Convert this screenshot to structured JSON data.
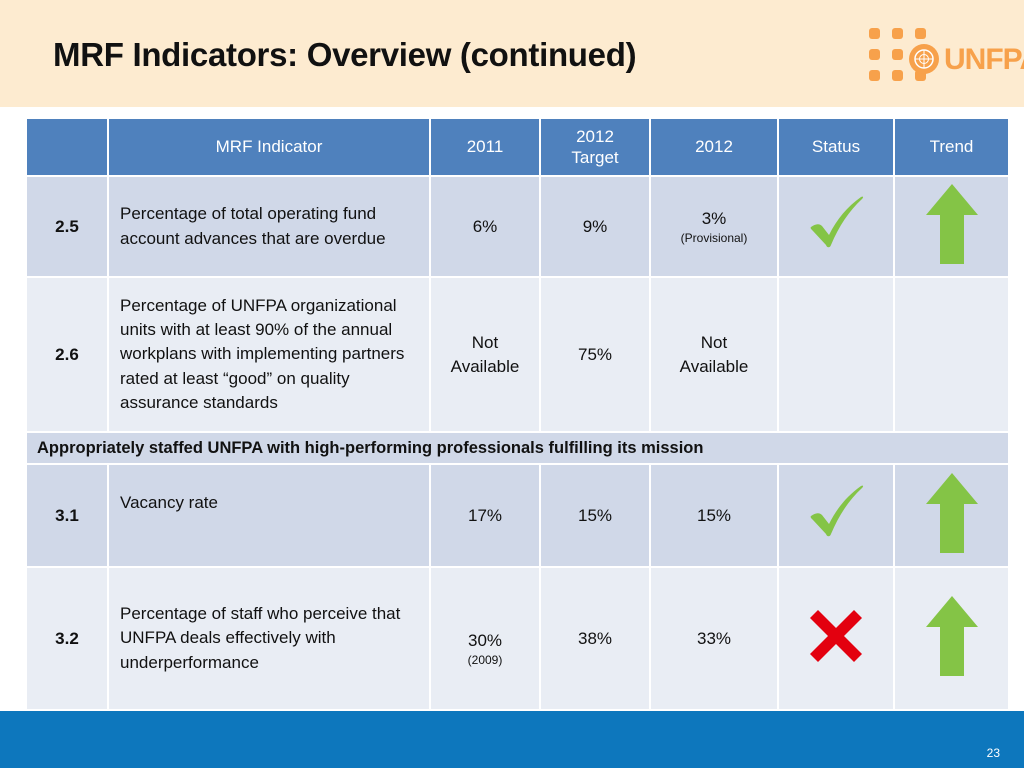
{
  "slide": {
    "title": "MRF Indicators: Overview (continued)",
    "page_number": "23"
  },
  "logo": {
    "text": "UNFPA",
    "color": "#f7a14b"
  },
  "table": {
    "headers": [
      "",
      "MRF Indicator",
      "2011",
      "2012 Target",
      "2012",
      "Status",
      "Trend"
    ],
    "rows": [
      {
        "num": "2.5",
        "indicator": "Percentage of total operating fund account advances that are overdue",
        "y2011": "6%",
        "y2011_note": "",
        "target2012": "9%",
        "y2012": "3%",
        "y2012_note": "(Provisional)",
        "status": "check-icon",
        "trend": "up-arrow-icon"
      },
      {
        "num": "2.6",
        "indicator": "Percentage of UNFPA organizational units with at least 90% of the annual workplans with implementing partners rated at least “good” on quality assurance standards",
        "y2011": "Not Available",
        "y2011_note": "",
        "target2012": "75%",
        "y2012": "Not Available",
        "y2012_note": "",
        "status": "",
        "trend": ""
      }
    ],
    "section_title": "Appropriately staffed UNFPA with high-performing professionals fulfilling its mission",
    "rows2": [
      {
        "num": "3.1",
        "indicator": "Vacancy rate",
        "y2011": "17%",
        "y2011_note": "",
        "target2012": "15%",
        "y2012": "15%",
        "status": "check-icon",
        "trend": "up-arrow-icon"
      },
      {
        "num": "3.2",
        "indicator": "Percentage of staff who perceive that UNFPA deals effectively with underperformance",
        "y2011": "30%",
        "y2011_note": "(2009)",
        "target2012": "38%",
        "y2012": "33%",
        "status": "cross-icon",
        "trend": "up-arrow-icon"
      }
    ]
  },
  "colors": {
    "header_bg": "#4f81bd",
    "row_dark": "#d0d8e8",
    "row_light": "#e9edf4",
    "check": "#84c446",
    "arrow": "#84c446",
    "cross": "#e3000f",
    "footer": "#0d77bd"
  }
}
